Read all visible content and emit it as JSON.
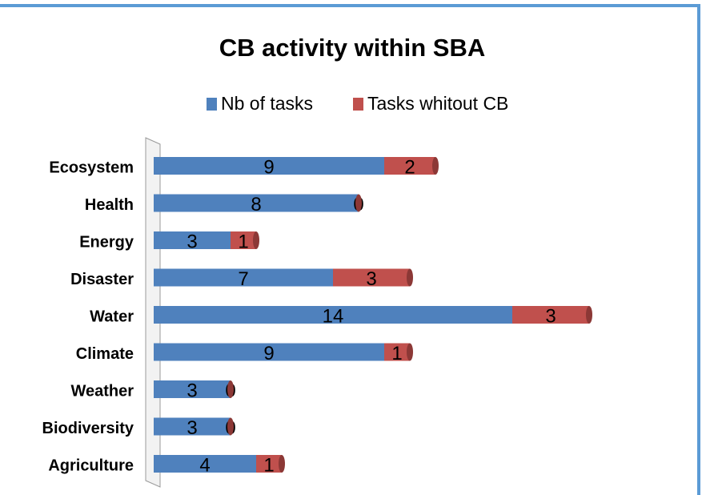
{
  "chart_data": {
    "type": "stacked-bar-horizontal",
    "title": "CB activity within SBA",
    "categories": [
      "Ecosystem",
      "Health",
      "Energy",
      "Disaster",
      "Water",
      "Climate",
      "Weather",
      "Biodiversity",
      "Agriculture"
    ],
    "series": [
      {
        "name": "Nb of tasks",
        "color": "#4f81bd",
        "values": [
          9,
          8,
          3,
          7,
          14,
          9,
          3,
          3,
          4
        ]
      },
      {
        "name": "Tasks whitout CB",
        "color": "#c0504d",
        "values": [
          2,
          0,
          1,
          3,
          3,
          1,
          0,
          0,
          1
        ]
      }
    ],
    "legend": "top"
  }
}
